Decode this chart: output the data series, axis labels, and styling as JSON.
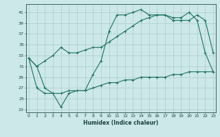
{
  "title": "",
  "xlabel": "Humidex (Indice chaleur)",
  "ylabel": "",
  "bg_color": "#cce8e8",
  "line_color": "#1a7060",
  "grid_color": "#aacccc",
  "x_ticks": [
    0,
    1,
    2,
    3,
    4,
    5,
    6,
    7,
    8,
    9,
    10,
    11,
    12,
    13,
    14,
    15,
    16,
    17,
    18,
    19,
    20,
    21,
    22,
    23
  ],
  "y_ticks": [
    23,
    25,
    27,
    29,
    31,
    33,
    35,
    37,
    39,
    41
  ],
  "ylim": [
    22.5,
    42.5
  ],
  "xlim": [
    -0.3,
    23.3
  ],
  "series1_y": [
    32.5,
    31.0,
    32.0,
    33.0,
    34.5,
    33.5,
    33.5,
    34.0,
    34.5,
    34.5,
    35.5,
    36.5,
    37.5,
    38.5,
    39.5,
    40.0,
    40.5,
    40.5,
    39.5,
    39.5,
    39.5,
    40.5,
    39.5,
    33.5
  ],
  "series2_y": [
    32.5,
    31.0,
    27.0,
    26.0,
    23.5,
    26.0,
    26.5,
    26.5,
    29.5,
    32.0,
    37.5,
    40.5,
    40.5,
    41.0,
    41.5,
    40.5,
    40.5,
    40.5,
    40.0,
    40.0,
    41.0,
    39.5,
    33.5,
    30.0
  ],
  "series3_y": [
    32.5,
    27.0,
    26.0,
    26.0,
    26.0,
    26.5,
    26.5,
    26.5,
    27.0,
    27.5,
    28.0,
    28.0,
    28.5,
    28.5,
    29.0,
    29.0,
    29.0,
    29.0,
    29.5,
    29.5,
    30.0,
    30.0,
    30.0,
    30.0
  ]
}
